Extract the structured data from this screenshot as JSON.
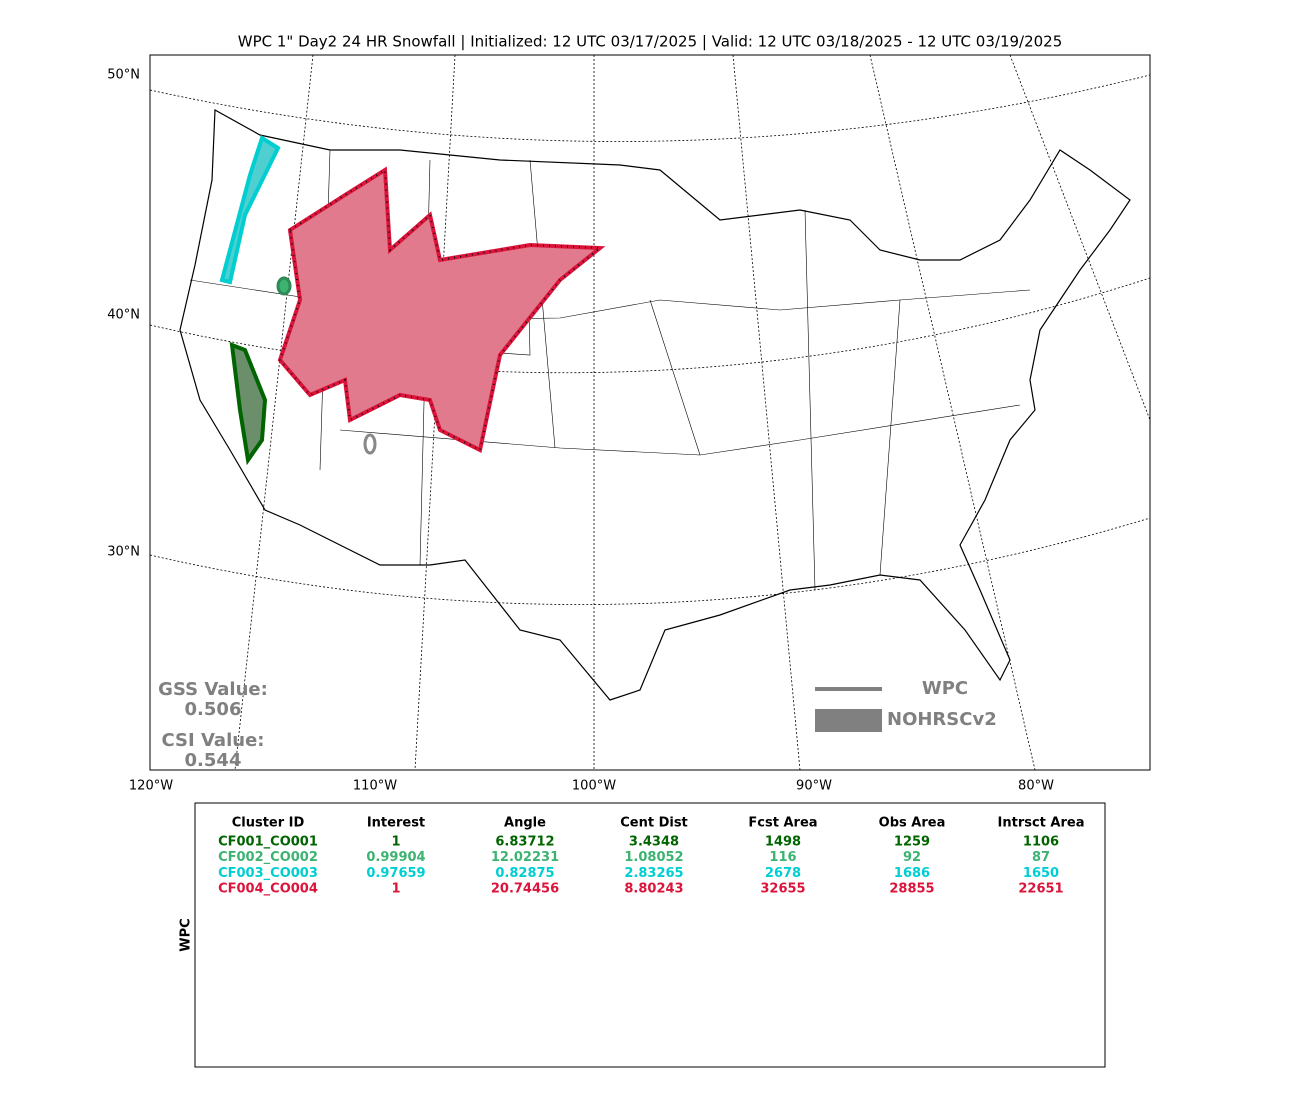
{
  "title": "WPC 1\" Day2 24 HR Snowfall | Initialized: 12 UTC 03/17/2025 | Valid: 12 UTC 03/18/2025 - 12 UTC 03/19/2025",
  "map": {
    "lat_labels": [
      "50°N",
      "40°N",
      "30°N"
    ],
    "lon_labels": [
      "120°W",
      "110°W",
      "100°W",
      "90°W",
      "80°W"
    ]
  },
  "scores": [
    {
      "label": "GSS Value:",
      "value": "0.506"
    },
    {
      "label": "CSI Value:",
      "value": "0.544"
    }
  ],
  "legend": [
    "WPC",
    "NOHRSCv2"
  ],
  "table": {
    "side_label": "WPC",
    "columns": [
      "Cluster ID",
      "Interest",
      "Angle",
      "Cent Dist",
      "Fcst Area",
      "Obs Area",
      "Intrsct Area"
    ],
    "rows": [
      {
        "color": "#006400",
        "cells": [
          "CF001_CO001",
          "1",
          "6.83712",
          "3.4348",
          "1498",
          "1259",
          "1106"
        ]
      },
      {
        "color": "#3cb371",
        "cells": [
          "CF002_CO002",
          "0.99904",
          "12.02231",
          "1.08052",
          "116",
          "92",
          "87"
        ]
      },
      {
        "color": "#00ced1",
        "cells": [
          "CF003_CO003",
          "0.97659",
          "0.82875",
          "2.83265",
          "2678",
          "1686",
          "1650"
        ]
      },
      {
        "color": "#dc143c",
        "cells": [
          "CF004_CO004",
          "1",
          "20.74456",
          "8.80243",
          "32655",
          "28855",
          "22651"
        ]
      }
    ]
  }
}
